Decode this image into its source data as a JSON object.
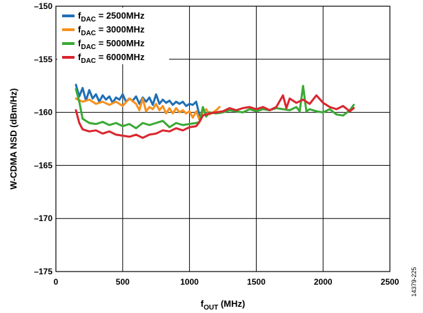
{
  "chart_data": {
    "type": "line",
    "xlabel": {
      "main": "f",
      "sub": "OUT",
      "unit": " (MHz)"
    },
    "ylabel": "W-CDMA NSD (dBm/Hz)",
    "xlim": [
      0,
      2500
    ],
    "ylim": [
      -175,
      -150
    ],
    "x_ticks": [
      0,
      500,
      1000,
      1500,
      2000,
      2500
    ],
    "y_ticks": [
      -150,
      -155,
      -160,
      -165,
      -170,
      -175
    ],
    "x_tick_labels": [
      "0",
      "500",
      "1000",
      "1500",
      "2000",
      "2500"
    ],
    "y_tick_labels": [
      "–150",
      "–155",
      "–160",
      "–165",
      "–170",
      "–175"
    ],
    "grid": true,
    "legend_position": "top-left",
    "figure_id": "14379-225",
    "series": [
      {
        "name": "f_DAC = 2500MHz",
        "label_main": "f",
        "label_sub": "DAC",
        "label_rest": " = 2500MHz",
        "color": "#1f6fb5",
        "x": [
          150,
          175,
          200,
          225,
          250,
          275,
          300,
          325,
          350,
          375,
          400,
          425,
          450,
          475,
          500,
          525,
          550,
          575,
          600,
          625,
          650,
          675,
          700,
          725,
          750,
          775,
          800,
          825,
          850,
          875,
          900,
          925,
          950,
          975,
          1000,
          1025,
          1050,
          1075
        ],
        "y": [
          -157.4,
          -158.5,
          -157.7,
          -158.9,
          -157.9,
          -158.7,
          -158.3,
          -159.0,
          -158.4,
          -158.8,
          -158.5,
          -159.1,
          -158.6,
          -158.8,
          -158.3,
          -159.0,
          -158.7,
          -158.9,
          -158.5,
          -159.2,
          -158.6,
          -159.0,
          -158.6,
          -159.3,
          -158.3,
          -159.2,
          -158.8,
          -159.1,
          -158.9,
          -159.3,
          -159.0,
          -159.2,
          -159.0,
          -159.4,
          -159.2,
          -159.3,
          -159.0,
          -160.3
        ]
      },
      {
        "name": "f_DAC = 3000MHz",
        "label_main": "f",
        "label_sub": "DAC",
        "label_rest": " = 3000MHz",
        "color": "#f7901e",
        "x": [
          150,
          200,
          250,
          300,
          350,
          400,
          450,
          500,
          550,
          600,
          625,
          650,
          675,
          700,
          725,
          750,
          775,
          800,
          825,
          850,
          875,
          900,
          925,
          950,
          975,
          1000,
          1025,
          1050,
          1075,
          1100,
          1125,
          1150,
          1175,
          1200,
          1225
        ],
        "y": [
          -158.7,
          -159.0,
          -158.8,
          -159.2,
          -159.0,
          -159.3,
          -159.0,
          -159.4,
          -158.7,
          -159.2,
          -159.8,
          -158.7,
          -159.9,
          -159.5,
          -159.7,
          -159.2,
          -159.8,
          -159.4,
          -160.1,
          -159.6,
          -160.1,
          -159.6,
          -160.0,
          -159.8,
          -160.1,
          -159.9,
          -160.5,
          -159.9,
          -160.7,
          -160.0,
          -159.7,
          -160.2,
          -160.0,
          -159.8,
          -159.5
        ]
      },
      {
        "name": "f_DAC = 5000MHz",
        "label_main": "f",
        "label_sub": "DAC",
        "label_rest": " = 5000MHz",
        "color": "#3aa935",
        "x": [
          150,
          175,
          200,
          250,
          300,
          350,
          400,
          450,
          500,
          550,
          600,
          650,
          700,
          750,
          800,
          850,
          900,
          950,
          1000,
          1050,
          1075,
          1100,
          1125,
          1150,
          1200,
          1250,
          1300,
          1350,
          1400,
          1450,
          1500,
          1550,
          1600,
          1650,
          1700,
          1750,
          1800,
          1825,
          1850,
          1875,
          1900,
          1950,
          2000,
          2050,
          2100,
          2150,
          2200,
          2230
        ],
        "y": [
          -157.8,
          -159.0,
          -160.6,
          -161.0,
          -161.1,
          -160.9,
          -161.2,
          -161.0,
          -161.3,
          -161.1,
          -161.5,
          -161.0,
          -161.2,
          -161.0,
          -160.8,
          -161.4,
          -161.0,
          -161.2,
          -161.1,
          -161.0,
          -160.9,
          -159.5,
          -160.4,
          -160.0,
          -160.1,
          -160.0,
          -159.8,
          -159.9,
          -160.0,
          -159.7,
          -159.9,
          -159.7,
          -159.8,
          -159.6,
          -159.7,
          -159.8,
          -159.5,
          -159.9,
          -157.5,
          -159.9,
          -159.7,
          -159.9,
          -160.0,
          -159.7,
          -160.2,
          -160.3,
          -159.8,
          -159.3
        ]
      },
      {
        "name": "f_DAC = 6000MHz",
        "label_main": "f",
        "label_sub": "DAC",
        "label_rest": " = 6000MHz",
        "color": "#d9262e",
        "x": [
          150,
          175,
          200,
          250,
          300,
          350,
          400,
          450,
          500,
          550,
          600,
          650,
          700,
          750,
          800,
          850,
          900,
          950,
          1000,
          1050,
          1075,
          1100,
          1150,
          1200,
          1250,
          1300,
          1350,
          1400,
          1450,
          1500,
          1550,
          1600,
          1650,
          1700,
          1725,
          1750,
          1800,
          1850,
          1900,
          1950,
          2000,
          2050,
          2100,
          2150,
          2200,
          2230
        ],
        "y": [
          -159.8,
          -161.0,
          -161.6,
          -161.8,
          -161.7,
          -162.0,
          -161.8,
          -162.1,
          -162.2,
          -162.3,
          -162.1,
          -162.4,
          -162.1,
          -162.0,
          -161.7,
          -161.8,
          -161.5,
          -161.7,
          -161.4,
          -161.3,
          -160.9,
          -160.3,
          -160.1,
          -160.0,
          -159.9,
          -159.6,
          -159.8,
          -159.6,
          -159.5,
          -159.7,
          -159.5,
          -159.8,
          -159.5,
          -158.4,
          -159.6,
          -158.7,
          -159.1,
          -158.8,
          -159.2,
          -158.4,
          -159.1,
          -159.5,
          -159.7,
          -159.4,
          -159.9,
          -159.6
        ]
      }
    ]
  }
}
